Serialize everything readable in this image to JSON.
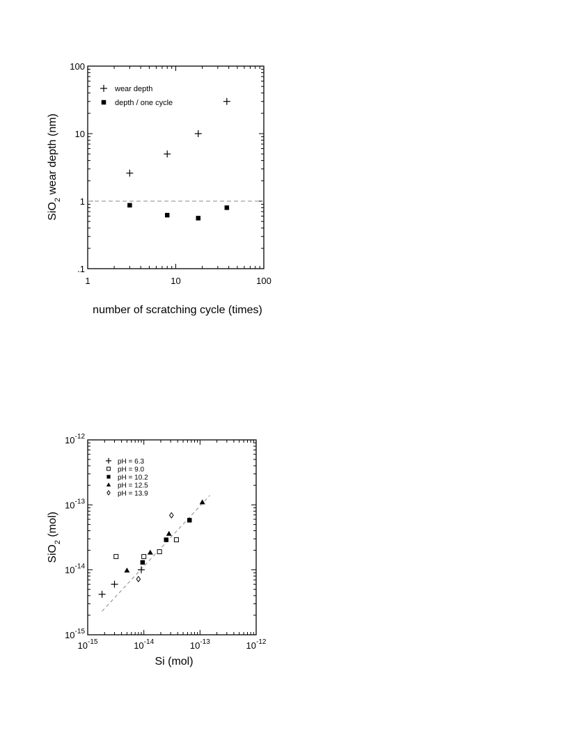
{
  "chart_data": [
    {
      "type": "scatter",
      "xscale": "log",
      "yscale": "log",
      "xlim": [
        1,
        100
      ],
      "ylim": [
        0.1,
        100
      ],
      "xlabel": "number of scratching cycle (times)",
      "ylabel": {
        "pre": "SiO",
        "sub": "2",
        "post": " wear depth (nm)"
      },
      "xticks": [
        {
          "value": 1,
          "label": "1"
        },
        {
          "value": 10,
          "label": "10"
        },
        {
          "value": 100,
          "label": "100"
        }
      ],
      "yticks": [
        {
          "value": 0.1,
          "label": ".1"
        },
        {
          "value": 1,
          "label": "1"
        },
        {
          "value": 10,
          "label": "10"
        },
        {
          "value": 100,
          "label": "100"
        }
      ],
      "legend_position": "top-left",
      "reference_line": {
        "y": 1,
        "style": "dashed"
      },
      "series": [
        {
          "name": "wear depth",
          "marker": "plus",
          "points": [
            [
              3,
              2.6
            ],
            [
              8,
              5
            ],
            [
              18,
              10
            ],
            [
              38,
              30
            ]
          ]
        },
        {
          "name": "depth / one cycle",
          "marker": "filled-square",
          "points": [
            [
              3,
              0.87
            ],
            [
              8,
              0.62
            ],
            [
              18,
              0.56
            ],
            [
              38,
              0.8
            ]
          ]
        }
      ]
    },
    {
      "type": "scatter",
      "xscale": "log",
      "yscale": "log",
      "xlim": [
        1e-15,
        1e-12
      ],
      "ylim": [
        1e-15,
        1e-12
      ],
      "xlabel": "Si (mol)",
      "ylabel": {
        "pre": "SiO",
        "sub": "2",
        "post": " (mol)"
      },
      "xticks": [
        {
          "value": 1e-15,
          "base": "10",
          "exp": "-15"
        },
        {
          "value": 1e-14,
          "base": "10",
          "exp": "-14"
        },
        {
          "value": 1e-13,
          "base": "10",
          "exp": "-13"
        },
        {
          "value": 1e-12,
          "base": "10",
          "exp": "-12"
        }
      ],
      "yticks": [
        {
          "value": 1e-15,
          "base": "10",
          "exp": "-15"
        },
        {
          "value": 1e-14,
          "base": "10",
          "exp": "-14"
        },
        {
          "value": 1e-13,
          "base": "10",
          "exp": "-13"
        },
        {
          "value": 1e-12,
          "base": "10",
          "exp": "-12"
        }
      ],
      "legend_position": "top-left",
      "fit_line": {
        "style": "dashed",
        "from": [
          1.8e-15,
          2.3e-15
        ],
        "to": [
          1.5e-13,
          1.4e-13
        ]
      },
      "series": [
        {
          "name": "pH = 6.3",
          "marker": "plus",
          "points": [
            [
              1.8e-15,
              4.2e-15
            ],
            [
              3e-15,
              6e-15
            ],
            [
              9e-15,
              1e-14
            ]
          ]
        },
        {
          "name": "pH = 9.0",
          "marker": "open-square",
          "points": [
            [
              3.2e-15,
              1.6e-14
            ],
            [
              1e-14,
              1.6e-14
            ],
            [
              1.9e-14,
              1.9e-14
            ],
            [
              3.8e-14,
              2.9e-14
            ]
          ]
        },
        {
          "name": "pH = 10.2",
          "marker": "filled-square",
          "points": [
            [
              9.5e-15,
              1.3e-14
            ],
            [
              2.5e-14,
              2.9e-14
            ],
            [
              6.5e-14,
              5.8e-14
            ]
          ]
        },
        {
          "name": "pH = 12.5",
          "marker": "filled-triangle",
          "points": [
            [
              5e-15,
              9.8e-15
            ],
            [
              1.3e-14,
              1.85e-14
            ],
            [
              2.8e-14,
              3.6e-14
            ],
            [
              1.1e-13,
              1.1e-13
            ]
          ]
        },
        {
          "name": "pH = 13.9",
          "marker": "diamond",
          "points": [
            [
              8e-15,
              7.2e-15
            ],
            [
              3.1e-14,
              6.9e-14
            ]
          ]
        }
      ]
    }
  ]
}
